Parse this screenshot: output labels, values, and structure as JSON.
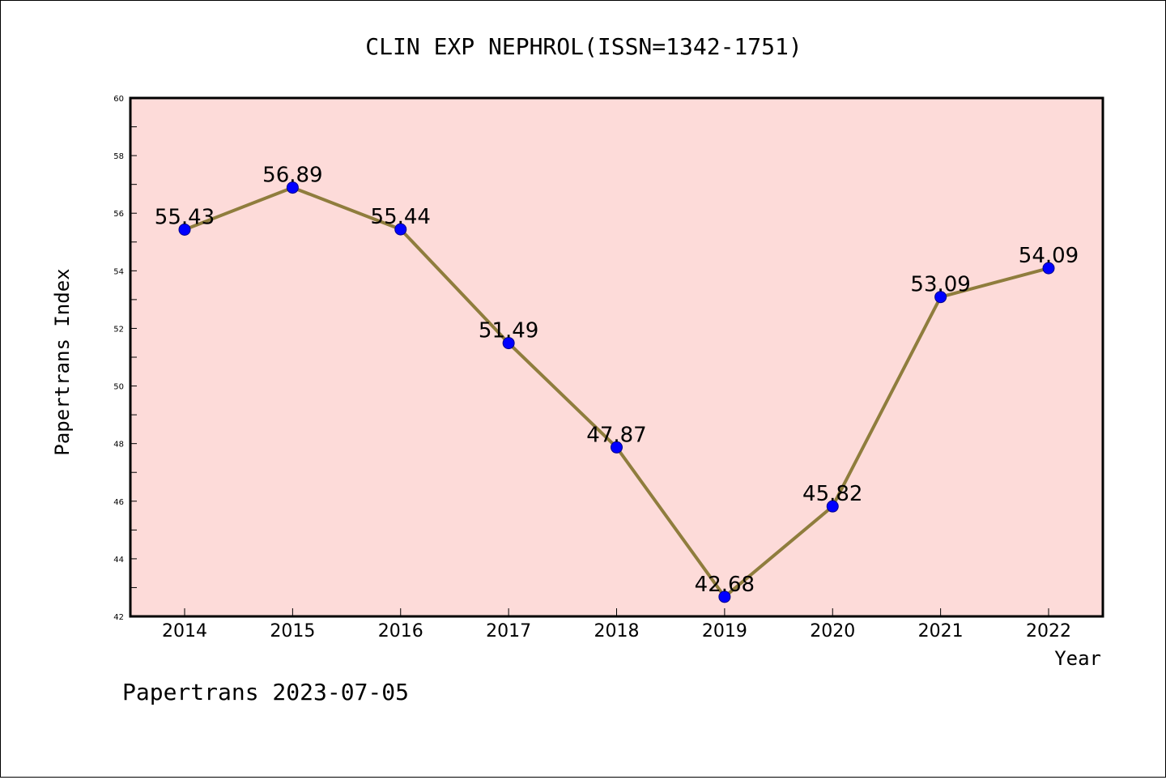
{
  "chart_data": {
    "type": "line",
    "title": "CLIN EXP NEPHROL(ISSN=1342-1751)",
    "xlabel": "Year",
    "ylabel": "Papertrans Index",
    "categories": [
      "2014",
      "2015",
      "2016",
      "2017",
      "2018",
      "2019",
      "2020",
      "2021",
      "2022"
    ],
    "series": [
      {
        "values": [
          55.43,
          56.89,
          55.44,
          51.49,
          47.87,
          42.68,
          45.82,
          53.09,
          54.09
        ],
        "labels": [
          "55.43",
          "56.89",
          "55.44",
          "51.49",
          "47.87",
          "42.68",
          "45.82",
          "53.09",
          "54.09"
        ]
      }
    ],
    "ylim": [
      42,
      60
    ],
    "yticks": [
      "42",
      "44",
      "46",
      "48",
      "50",
      "52",
      "54",
      "56",
      "58",
      "60"
    ],
    "grid": false,
    "colors": {
      "plot_background": "#fddbd9",
      "line": "#8f7d3d",
      "marker": "#0000ff"
    }
  },
  "footer": {
    "text": "Papertrans 2023-07-05"
  }
}
